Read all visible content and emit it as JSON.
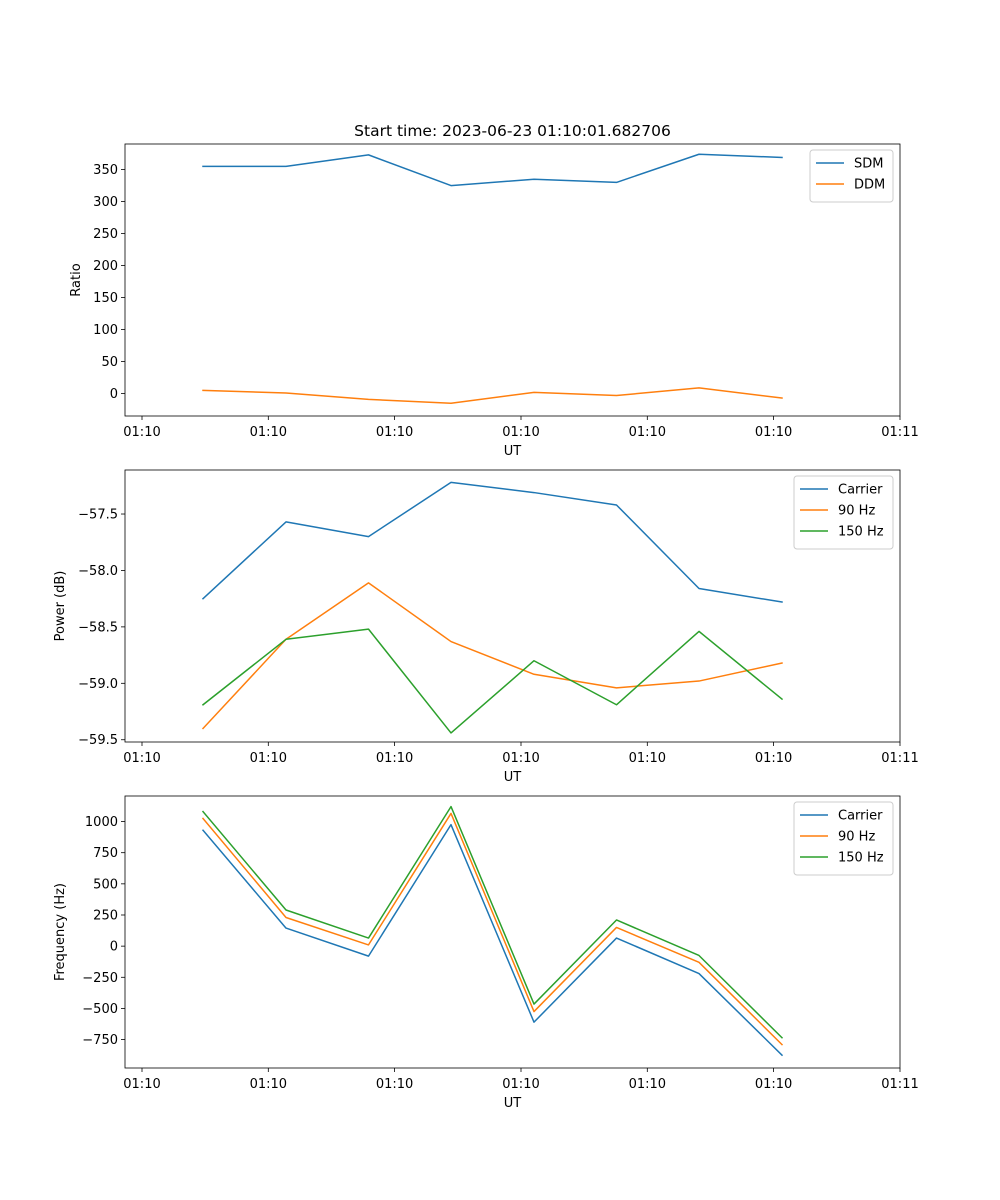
{
  "figure_title": "Start time: 2023-06-23 01:10:01.682706",
  "chart_data": [
    {
      "type": "line",
      "title": "Start time: 2023-06-23 01:10:01.682706",
      "xlabel": "UT",
      "ylabel": "Ratio",
      "x_tick_labels": [
        "01:10",
        "01:10",
        "01:10",
        "01:10",
        "01:10",
        "01:10",
        "01:11"
      ],
      "y_ticks": [
        0,
        50,
        100,
        150,
        200,
        250,
        300,
        350
      ],
      "y_tick_labels": [
        "0",
        "50",
        "100",
        "150",
        "200",
        "250",
        "300",
        "350"
      ],
      "ylim": [
        -35,
        390
      ],
      "x": [
        1,
        2,
        3,
        4,
        5,
        6,
        7,
        8
      ],
      "series": [
        {
          "name": "SDM",
          "color": "#1f77b4",
          "values": [
            355,
            355,
            373,
            325,
            335,
            330,
            374,
            369
          ]
        },
        {
          "name": "DDM",
          "color": "#ff7f0e",
          "values": [
            5,
            1,
            -9,
            -15,
            2,
            -3,
            9,
            -7
          ]
        }
      ],
      "legend": "top-right",
      "grid": false
    },
    {
      "type": "line",
      "title": "",
      "xlabel": "UT",
      "ylabel": "Power (dB)",
      "x_tick_labels": [
        "01:10",
        "01:10",
        "01:10",
        "01:10",
        "01:10",
        "01:10",
        "01:11"
      ],
      "y_ticks": [
        -59.5,
        -59.0,
        -58.5,
        -58.0,
        -57.5
      ],
      "y_tick_labels": [
        "−59.5",
        "−59.0",
        "−58.5",
        "−58.0",
        "−57.5"
      ],
      "ylim": [
        -59.52,
        -57.11
      ],
      "x": [
        1,
        2,
        3,
        4,
        5,
        6,
        7,
        8
      ],
      "series": [
        {
          "name": "Carrier",
          "color": "#1f77b4",
          "values": [
            -58.25,
            -57.57,
            -57.7,
            -57.22,
            -57.31,
            -57.42,
            -58.16,
            -58.28
          ]
        },
        {
          "name": "90 Hz",
          "color": "#ff7f0e",
          "values": [
            -59.4,
            -58.61,
            -58.11,
            -58.63,
            -58.92,
            -59.04,
            -58.98,
            -58.82
          ]
        },
        {
          "name": "150 Hz",
          "color": "#2ca02c",
          "values": [
            -59.19,
            -58.61,
            -58.52,
            -59.44,
            -58.8,
            -59.19,
            -58.54,
            -59.14
          ]
        }
      ],
      "legend": "top-right",
      "grid": false
    },
    {
      "type": "line",
      "title": "",
      "xlabel": "UT",
      "ylabel": "Frequency (Hz)",
      "x_tick_labels": [
        "01:10",
        "01:10",
        "01:10",
        "01:10",
        "01:10",
        "01:10",
        "01:11"
      ],
      "y_ticks": [
        -750,
        -500,
        -250,
        0,
        250,
        500,
        750,
        1000
      ],
      "y_tick_labels": [
        "−750",
        "−500",
        "−250",
        "0",
        "250",
        "500",
        "750",
        "1000"
      ],
      "ylim": [
        -978,
        1205
      ],
      "x": [
        1,
        2,
        3,
        4,
        5,
        6,
        7,
        8
      ],
      "series": [
        {
          "name": "Carrier",
          "color": "#1f77b4",
          "values": [
            930,
            145,
            -80,
            975,
            -610,
            65,
            -220,
            -875
          ]
        },
        {
          "name": "90 Hz",
          "color": "#ff7f0e",
          "values": [
            1025,
            230,
            10,
            1065,
            -525,
            150,
            -130,
            -790
          ]
        },
        {
          "name": "150 Hz",
          "color": "#2ca02c",
          "values": [
            1080,
            290,
            65,
            1120,
            -465,
            210,
            -75,
            -735
          ]
        }
      ],
      "legend": "top-right",
      "grid": false
    }
  ]
}
